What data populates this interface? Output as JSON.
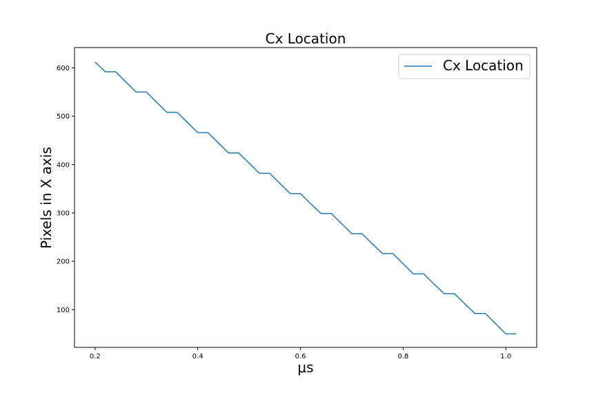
{
  "chart_data": {
    "type": "line",
    "title": "Cx Location",
    "xlabel": "μs",
    "ylabel": "Pixels in X axis",
    "xlim": [
      0.16,
      1.06
    ],
    "ylim": [
      22,
      642
    ],
    "x_ticks": [
      0.2,
      0.4,
      0.6,
      0.8,
      1.0
    ],
    "x_tick_labels": [
      "0.2",
      "0.4",
      "0.6",
      "0.8",
      "1.0"
    ],
    "y_ticks": [
      100,
      200,
      300,
      400,
      500,
      600
    ],
    "y_tick_labels": [
      "100",
      "200",
      "300",
      "400",
      "500",
      "600"
    ],
    "grid": false,
    "legend_position": "top-right",
    "series": [
      {
        "name": "Cx Location",
        "color": "#1f77b4",
        "x": [
          0.2,
          0.22,
          0.24,
          0.26,
          0.28,
          0.3,
          0.32,
          0.34,
          0.36,
          0.38,
          0.4,
          0.42,
          0.44,
          0.46,
          0.48,
          0.5,
          0.52,
          0.54,
          0.56,
          0.58,
          0.6,
          0.62,
          0.64,
          0.66,
          0.68,
          0.7,
          0.72,
          0.74,
          0.76,
          0.78,
          0.8,
          0.82,
          0.84,
          0.86,
          0.88,
          0.9,
          0.92,
          0.94,
          0.96,
          0.98,
          1.0,
          1.02
        ],
        "y": [
          612,
          592,
          592,
          571,
          550,
          550,
          529,
          508,
          508,
          487,
          466,
          466,
          445,
          424,
          424,
          403,
          382,
          382,
          361,
          340,
          340,
          319,
          299,
          299,
          278,
          257,
          257,
          236,
          216,
          216,
          195,
          174,
          174,
          153,
          133,
          133,
          112,
          92,
          92,
          71,
          50,
          50
        ]
      }
    ]
  }
}
